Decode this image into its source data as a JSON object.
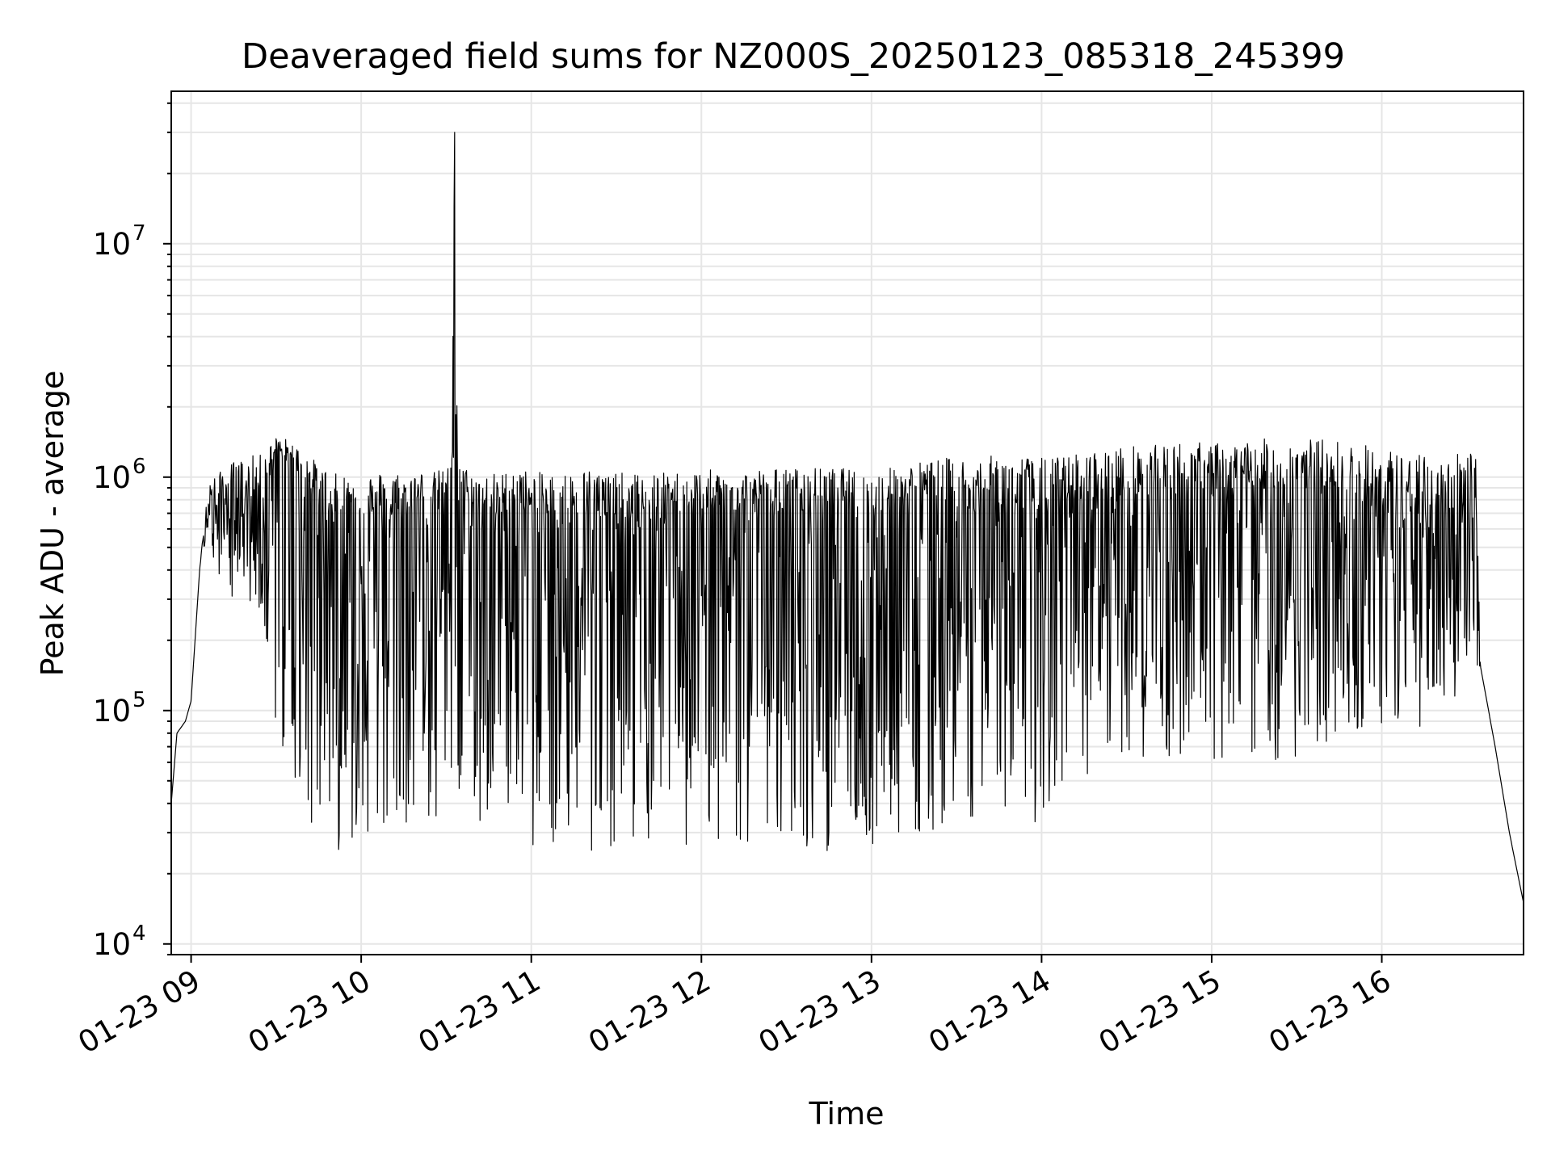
{
  "chart_data": {
    "type": "line",
    "title": "Deaveraged field sums for NZ000S_20250123_085318_245399",
    "xlabel": "Time",
    "ylabel": "Peak ADU - average",
    "yscale": "log",
    "ylim": [
      9000,
      45000000
    ],
    "xlim": [
      "2025-01-23 08:53",
      "2025-01-23 16:50"
    ],
    "grid": true,
    "legend": "none",
    "line_color": "#000000",
    "x_ticks": [
      "01-23 09",
      "01-23 10",
      "01-23 11",
      "01-23 12",
      "01-23 13",
      "01-23 14",
      "01-23 15",
      "01-23 16"
    ],
    "x_tick_times": [
      "2025-01-23 09:00",
      "2025-01-23 10:00",
      "2025-01-23 11:00",
      "2025-01-23 12:00",
      "2025-01-23 13:00",
      "2025-01-23 14:00",
      "2025-01-23 15:00",
      "2025-01-23 16:00"
    ],
    "y_ticks": [
      {
        "value": 10000,
        "base": "10",
        "exp": "4"
      },
      {
        "value": 100000,
        "base": "10",
        "exp": "5"
      },
      {
        "value": 1000000,
        "base": "10",
        "exp": "6"
      },
      {
        "value": 10000000,
        "base": "10",
        "exp": "7"
      }
    ],
    "series": [
      {
        "x": [
          "2025-01-23 08:53",
          "2025-01-23 08:55",
          "2025-01-23 08:58",
          "2025-01-23 09:00",
          "2025-01-23 09:03",
          "2025-01-23 09:06",
          "2025-01-23 09:10",
          "2025-01-23 09:15",
          "2025-01-23 09:20",
          "2025-01-23 09:25",
          "2025-01-23 09:30",
          "2025-01-23 09:35",
          "2025-01-23 09:40",
          "2025-01-23 09:45",
          "2025-01-23 09:50",
          "2025-01-23 09:55",
          "2025-01-23 10:00",
          "2025-01-23 10:05",
          "2025-01-23 10:10",
          "2025-01-23 10:15",
          "2025-01-23 10:20",
          "2025-01-23 10:25",
          "2025-01-23 10:30",
          "2025-01-23 10:32",
          "2025-01-23 10:33",
          "2025-01-23 10:34",
          "2025-01-23 10:40",
          "2025-01-23 10:45",
          "2025-01-23 10:50",
          "2025-01-23 10:55",
          "2025-01-23 11:00",
          "2025-01-23 11:10",
          "2025-01-23 11:20",
          "2025-01-23 11:30",
          "2025-01-23 11:40",
          "2025-01-23 11:50",
          "2025-01-23 12:00",
          "2025-01-23 12:10",
          "2025-01-23 12:20",
          "2025-01-23 12:30",
          "2025-01-23 12:40",
          "2025-01-23 12:50",
          "2025-01-23 13:00",
          "2025-01-23 13:10",
          "2025-01-23 13:20",
          "2025-01-23 13:30",
          "2025-01-23 13:40",
          "2025-01-23 13:50",
          "2025-01-23 14:00",
          "2025-01-23 14:10",
          "2025-01-23 14:20",
          "2025-01-23 14:30",
          "2025-01-23 14:40",
          "2025-01-23 14:50",
          "2025-01-23 15:00",
          "2025-01-23 15:10",
          "2025-01-23 15:20",
          "2025-01-23 15:30",
          "2025-01-23 15:40",
          "2025-01-23 15:50",
          "2025-01-23 16:00",
          "2025-01-23 16:10",
          "2025-01-23 16:20",
          "2025-01-23 16:30",
          "2025-01-23 16:33",
          "2025-01-23 16:35",
          "2025-01-23 16:40",
          "2025-01-23 16:45",
          "2025-01-23 16:50"
        ],
        "y": [
          40000,
          80000,
          90000,
          110000,
          400000,
          800000,
          700000,
          900000,
          750000,
          900000,
          1300000,
          1100000,
          1000000,
          800000,
          600000,
          650000,
          700000,
          650000,
          700000,
          650000,
          800000,
          700000,
          750000,
          1200000,
          30000000,
          800000,
          700000,
          650000,
          700000,
          800000,
          700000,
          650000,
          700000,
          650000,
          600000,
          700000,
          650000,
          700000,
          680000,
          700000,
          720000,
          700000,
          650000,
          700000,
          750000,
          700000,
          720000,
          700000,
          650000,
          680000,
          720000,
          800000,
          850000,
          900000,
          800000,
          850000,
          900000,
          850000,
          900000,
          800000,
          700000,
          600000,
          550000,
          900000,
          1000000,
          150000,
          70000,
          30000,
          15000
        ],
        "band_low": [
          40000,
          80000,
          90000,
          110000,
          400000,
          500000,
          350000,
          300000,
          250000,
          200000,
          80000,
          50000,
          35000,
          30000,
          25000,
          25000,
          30000,
          30000,
          28000,
          25000,
          28000,
          30000,
          35000,
          35000,
          35000,
          30000,
          30000,
          35000,
          40000,
          40000,
          25000,
          25000,
          25000,
          25000,
          25000,
          25000,
          25000,
          25000,
          25000,
          25000,
          25000,
          25000,
          25000,
          25000,
          30000,
          35000,
          35000,
          35000,
          30000,
          35000,
          50000,
          60000,
          60000,
          60000,
          60000,
          60000,
          60000,
          60000,
          70000,
          80000,
          80000,
          80000,
          80000,
          150000,
          150000,
          150000,
          70000,
          30000,
          15000
        ],
        "band_high": [
          40000,
          80000,
          90000,
          110000,
          400000,
          1000000,
          1100000,
          1200000,
          1300000,
          1300000,
          1500000,
          1500000,
          1300000,
          1200000,
          1100000,
          1100000,
          1100000,
          1100000,
          1150000,
          1100000,
          1100000,
          1100000,
          1150000,
          1200000,
          30000000,
          1200000,
          1100000,
          1100000,
          1100000,
          1150000,
          1100000,
          1100000,
          1150000,
          1100000,
          1100000,
          1100000,
          1150000,
          1100000,
          1150000,
          1150000,
          1150000,
          1150000,
          1100000,
          1200000,
          1250000,
          1300000,
          1300000,
          1350000,
          1300000,
          1350000,
          1400000,
          1450000,
          1450000,
          1500000,
          1500000,
          1500000,
          1550000,
          1550000,
          1550000,
          1500000,
          1450000,
          1400000,
          1300000,
          1400000,
          1450000,
          150000,
          70000,
          30000,
          15000
        ]
      }
    ]
  }
}
